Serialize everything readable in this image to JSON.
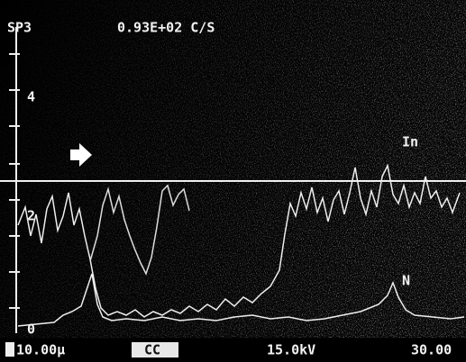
{
  "header": {
    "label": "SP3",
    "count_rate": "0.93E+02 C/S"
  },
  "axis": {
    "labels": [
      "4",
      "2",
      "0"
    ]
  },
  "traces": {
    "labels": [
      "In",
      "N"
    ]
  },
  "footer": {
    "scale": "10.00μ",
    "mode": "CC",
    "voltage": "15.0kV",
    "value": "30.00"
  }
}
